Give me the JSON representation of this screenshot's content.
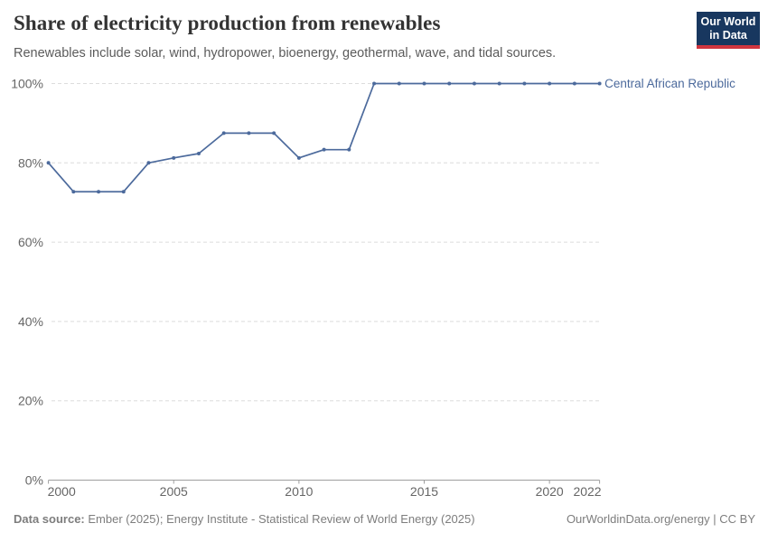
{
  "header": {
    "title": "Share of electricity production from renewables",
    "subtitle": "Renewables include solar, wind, hydropower, bioenergy, geothermal, wave, and tidal sources.",
    "logo": {
      "line1": "Our World",
      "line2": "in Data"
    }
  },
  "chart_data": {
    "type": "line",
    "title": "Share of electricity production from renewables",
    "xlabel": "",
    "ylabel": "",
    "xlim": [
      2000,
      2022
    ],
    "ylim": [
      0,
      100
    ],
    "x_ticks": [
      2000,
      2005,
      2010,
      2015,
      2020,
      2022
    ],
    "y_ticks": [
      0,
      20,
      40,
      60,
      80,
      100
    ],
    "y_tick_format": "{}%",
    "grid": "horizontal dashed",
    "legend_position": "end-of-line label",
    "line_color": "#4C6A9C",
    "series": [
      {
        "name": "Central African Republic",
        "x": [
          2000,
          2001,
          2002,
          2003,
          2004,
          2005,
          2006,
          2007,
          2008,
          2009,
          2010,
          2011,
          2012,
          2013,
          2014,
          2015,
          2016,
          2017,
          2018,
          2019,
          2020,
          2021,
          2022
        ],
        "values": [
          80,
          72.73,
          72.73,
          72.73,
          80,
          81.25,
          82.35,
          87.5,
          87.5,
          87.5,
          81.25,
          83.33,
          83.33,
          100,
          100,
          100,
          100,
          100,
          100,
          100,
          100,
          100,
          100
        ]
      }
    ]
  },
  "footer": {
    "source_label": "Data source:",
    "source_text": " Ember (2025); Energy Institute - Statistical Review of World Energy (2025)",
    "license_text": "OurWorldinData.org/energy | CC BY"
  },
  "colors": {
    "line": "#4C6A9C",
    "grid": "#dcdcdc",
    "axis_line": "#9e9e9e",
    "axis_text": "#666666",
    "title_text": "#333333",
    "subtitle_text": "#5b5b5b",
    "footer_text": "#7d7d7d",
    "logo_bg": "#18375f",
    "logo_red": "#d0353f"
  }
}
